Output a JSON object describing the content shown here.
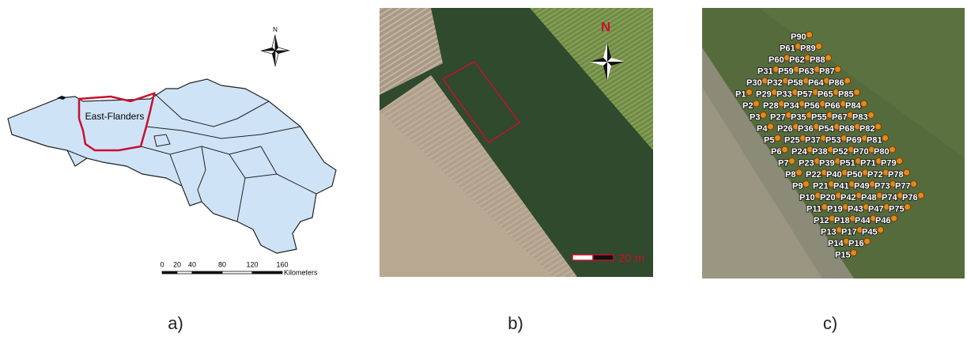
{
  "panel_a": {
    "region_label": "East-Flanders",
    "north": "N",
    "scale_ticks": [
      0,
      20,
      40,
      80,
      120,
      160
    ],
    "scale_unit": "Kilometers"
  },
  "panel_b": {
    "north": "N",
    "scale_label": "20 m"
  },
  "panel_c": {
    "rows": [
      [
        "P90"
      ],
      [
        "P61",
        "P89"
      ],
      [
        "P60",
        "P62",
        "P88"
      ],
      [
        "P31",
        "P59",
        "P63",
        "P87"
      ],
      [
        "P30",
        "P32",
        "P58",
        "P64",
        "P86"
      ],
      [
        "P1",
        "P29",
        "P33",
        "P57",
        "P65",
        "P85"
      ],
      [
        "P2",
        "P28",
        "P34",
        "P56",
        "P66",
        "P84"
      ],
      [
        "P3",
        "P27",
        "P35",
        "P55",
        "P67",
        "P83"
      ],
      [
        "P4",
        "P26",
        "P36",
        "P54",
        "P68",
        "P82"
      ],
      [
        "P5",
        "P25",
        "P37",
        "P53",
        "P69",
        "P81"
      ],
      [
        "P6",
        "P24",
        "P38",
        "P52",
        "P70",
        "P80"
      ],
      [
        "P7",
        "P23",
        "P39",
        "P51",
        "P71",
        "P79"
      ],
      [
        "P8",
        "P22",
        "P40",
        "P50",
        "P72",
        "P78"
      ],
      [
        "P9",
        "P21",
        "P41",
        "P49",
        "P73",
        "P77"
      ],
      [
        "P10",
        "P20",
        "P42",
        "P48",
        "P74",
        "P76"
      ],
      [
        "P11",
        "P19",
        "P43",
        "P47",
        "P75"
      ],
      [
        "P12",
        "P18",
        "P44",
        "P46"
      ],
      [
        "P13",
        "P17",
        "P45"
      ],
      [
        "P14",
        "P16"
      ],
      [
        "P15"
      ]
    ]
  },
  "captions": [
    "a)",
    "b)",
    "c)"
  ]
}
